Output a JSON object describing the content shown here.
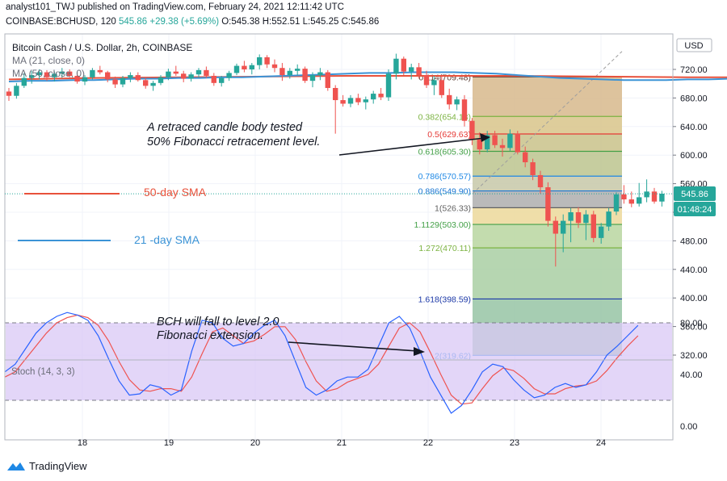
{
  "header": {
    "publisher": "analyst101_TWJ published on TradingView.com, February 24, 2021 12:11:42 UTC",
    "symbol_interval": "COINBASE:BCHUSD, 120",
    "last": "545.86",
    "change": "+29.38 (+5.69%)",
    "ohlc": "O:545.38 H:552.51 L:545.25 C:545.86"
  },
  "legend": {
    "title": "Bitcoin Cash / U.S. Dollar, 2h, COINBASE",
    "ma21": "MA (21, close, 0)",
    "ma50": "MA (50, close, 0)"
  },
  "stoch_label": "Stoch (14, 3, 3)",
  "footer": {
    "brand": "TradingView"
  },
  "price_axis": {
    "currency": "USD",
    "current_price": "545.86",
    "countdown": "01:48:24"
  },
  "annotations": {
    "retrace_1": "A retraced candle body tested",
    "retrace_2": "50% Fibonacci retracement level.",
    "fall_1": "BCH will fall to level 2.0",
    "fall_2": "Fibonacci extension.",
    "sma50": "50-day SMA",
    "sma21": "21 -day SMA"
  },
  "colors": {
    "up": "#26a69a",
    "down": "#ef5350",
    "ma21": "#3b93d6",
    "ma50": "#e8513b",
    "stoch_k": "#2962ff",
    "stoch_d": "#ef5350",
    "stoch_band": "#d9c8f5"
  },
  "chart_data": {
    "type": "candlestick",
    "price_ticks": [
      320,
      360,
      400,
      440,
      480,
      520,
      560,
      600,
      640,
      680,
      720
    ],
    "x_ticks": [
      "18",
      "19",
      "20",
      "21",
      "22",
      "23",
      "24"
    ],
    "fibonacci": [
      {
        "label": "0.114(709.48)",
        "value": 709.48,
        "color": "#5d4037"
      },
      {
        "label": "0.382(654.18)",
        "value": 654.18,
        "color": "#7cb342"
      },
      {
        "label": "0.5(629.63)",
        "value": 629.63,
        "color": "#e53935"
      },
      {
        "label": "0.618(605.30)",
        "value": 605.3,
        "color": "#43a047"
      },
      {
        "label": "0.786(570.57)",
        "value": 570.57,
        "color": "#1e88e5"
      },
      {
        "label": "0.886(549.90)",
        "value": 549.9,
        "color": "#1976d2"
      },
      {
        "label": "1(526.33)",
        "value": 526.33,
        "color": "#616161"
      },
      {
        "label": "1.1129(503.00)",
        "value": 503.0,
        "color": "#43a047"
      },
      {
        "label": "1.272(470.11)",
        "value": 470.11,
        "color": "#7cb342"
      },
      {
        "label": "1.618(398.59)",
        "value": 398.59,
        "color": "#1e3aa8"
      },
      {
        "label": "2(319.62)",
        "value": 319.62,
        "color": "#1e88e5"
      }
    ],
    "candles": [
      [
        689,
        694,
        676,
        683
      ],
      [
        683,
        701,
        679,
        697
      ],
      [
        697,
        715,
        694,
        708
      ],
      [
        708,
        718,
        700,
        712
      ],
      [
        712,
        720,
        706,
        716
      ],
      [
        716,
        719,
        704,
        709
      ],
      [
        709,
        717,
        703,
        714
      ],
      [
        714,
        722,
        708,
        717
      ],
      [
        717,
        720,
        709,
        711
      ],
      [
        711,
        716,
        700,
        703
      ],
      [
        703,
        712,
        698,
        709
      ],
      [
        709,
        722,
        706,
        719
      ],
      [
        719,
        725,
        713,
        716
      ],
      [
        716,
        718,
        702,
        706
      ],
      [
        706,
        710,
        694,
        699
      ],
      [
        699,
        711,
        695,
        708
      ],
      [
        708,
        716,
        702,
        712
      ],
      [
        712,
        716,
        703,
        705
      ],
      [
        705,
        709,
        693,
        697
      ],
      [
        697,
        704,
        690,
        701
      ],
      [
        701,
        712,
        698,
        709
      ],
      [
        709,
        721,
        705,
        717
      ],
      [
        717,
        725,
        711,
        714
      ],
      [
        714,
        718,
        702,
        707
      ],
      [
        707,
        716,
        703,
        713
      ],
      [
        713,
        722,
        708,
        719
      ],
      [
        719,
        724,
        708,
        711
      ],
      [
        711,
        715,
        697,
        701
      ],
      [
        701,
        711,
        696,
        708
      ],
      [
        708,
        718,
        704,
        715
      ],
      [
        715,
        728,
        712,
        725
      ],
      [
        725,
        732,
        716,
        720
      ],
      [
        720,
        729,
        713,
        726
      ],
      [
        726,
        741,
        720,
        737
      ],
      [
        737,
        740,
        722,
        727
      ],
      [
        727,
        734,
        716,
        722
      ],
      [
        722,
        729,
        704,
        712
      ],
      [
        712,
        722,
        707,
        718
      ],
      [
        718,
        727,
        712,
        721
      ],
      [
        721,
        724,
        701,
        704
      ],
      [
        704,
        716,
        695,
        712
      ],
      [
        712,
        722,
        705,
        716
      ],
      [
        716,
        719,
        690,
        694
      ],
      [
        694,
        698,
        630,
        677
      ],
      [
        677,
        684,
        668,
        672
      ],
      [
        672,
        684,
        667,
        680
      ],
      [
        680,
        686,
        670,
        674
      ],
      [
        674,
        682,
        664,
        678
      ],
      [
        678,
        690,
        672,
        686
      ],
      [
        686,
        694,
        677,
        681
      ],
      [
        681,
        720,
        676,
        714
      ],
      [
        714,
        742,
        706,
        735
      ],
      [
        735,
        738,
        712,
        717
      ],
      [
        717,
        728,
        706,
        723
      ],
      [
        723,
        729,
        707,
        712
      ],
      [
        712,
        718,
        694,
        698
      ],
      [
        698,
        711,
        684,
        705
      ],
      [
        705,
        712,
        680,
        684
      ],
      [
        684,
        693,
        664,
        671
      ],
      [
        671,
        682,
        663,
        678
      ],
      [
        678,
        684,
        640,
        648
      ],
      [
        648,
        652,
        614,
        622
      ],
      [
        622,
        632,
        601,
        608
      ],
      [
        608,
        634,
        604,
        628
      ],
      [
        628,
        634,
        610,
        614
      ],
      [
        614,
        623,
        598,
        610
      ],
      [
        610,
        636,
        606,
        630
      ],
      [
        630,
        634,
        601,
        604
      ],
      [
        604,
        612,
        583,
        590
      ],
      [
        590,
        595,
        565,
        572
      ],
      [
        572,
        578,
        546,
        555
      ],
      [
        555,
        562,
        500,
        508
      ],
      [
        508,
        514,
        444,
        490
      ],
      [
        490,
        517,
        464,
        508
      ],
      [
        508,
        526,
        478,
        520
      ],
      [
        520,
        527,
        498,
        505
      ],
      [
        505,
        523,
        481,
        517
      ],
      [
        517,
        522,
        478,
        484
      ],
      [
        484,
        505,
        476,
        500
      ],
      [
        500,
        526,
        494,
        521
      ],
      [
        521,
        548,
        516,
        545
      ],
      [
        545,
        558,
        532,
        538
      ],
      [
        538,
        549,
        527,
        532
      ],
      [
        532,
        561,
        528,
        541
      ],
      [
        541,
        566,
        534,
        549
      ],
      [
        549,
        554,
        532,
        535
      ],
      [
        535,
        550,
        528,
        546
      ]
    ],
    "ma21": [
      [
        706,
        703
      ],
      [
        711,
        704
      ],
      [
        716,
        704
      ],
      [
        721,
        705
      ],
      [
        726,
        705
      ],
      [
        731,
        706
      ],
      [
        736,
        707
      ],
      [
        741,
        707
      ],
      [
        746,
        708
      ],
      [
        751,
        708
      ],
      [
        756,
        709
      ],
      [
        761,
        709
      ],
      [
        766,
        710
      ],
      [
        771,
        711
      ],
      [
        776,
        712
      ],
      [
        781,
        713
      ],
      [
        786,
        714
      ],
      [
        791,
        715
      ],
      [
        796,
        715
      ],
      [
        801,
        716
      ],
      [
        806,
        716
      ],
      [
        811,
        716
      ],
      [
        816,
        715
      ],
      [
        821,
        714
      ],
      [
        826,
        712
      ],
      [
        831,
        710
      ],
      [
        836,
        708
      ],
      [
        841,
        707
      ],
      [
        846,
        706
      ],
      [
        851,
        705
      ],
      [
        856,
        705
      ],
      [
        861,
        705
      ],
      [
        866,
        706
      ],
      [
        871,
        706
      ],
      [
        876,
        707
      ],
      [
        881,
        708
      ],
      [
        886,
        708
      ],
      [
        891,
        708
      ],
      [
        896,
        708
      ],
      [
        901,
        707
      ],
      [
        906,
        705
      ],
      [
        911,
        704
      ],
      [
        916,
        702
      ],
      [
        921,
        700
      ],
      [
        926,
        699
      ],
      [
        931,
        698
      ],
      [
        936,
        697
      ],
      [
        941,
        696
      ],
      [
        946,
        696
      ],
      [
        951,
        696
      ],
      [
        956,
        697
      ],
      [
        961,
        698
      ],
      [
        966,
        699
      ],
      [
        971,
        700
      ],
      [
        976,
        702
      ],
      [
        981,
        703
      ],
      [
        986,
        704
      ],
      [
        991,
        705
      ],
      [
        996,
        703
      ],
      [
        1001,
        701
      ],
      [
        1006,
        696
      ],
      [
        1011,
        688
      ],
      [
        1016,
        680
      ],
      [
        1021,
        672
      ],
      [
        1026,
        665
      ],
      [
        1031,
        657
      ],
      [
        1036,
        650
      ],
      [
        1041,
        643
      ],
      [
        1046,
        634
      ],
      [
        1051,
        624
      ],
      [
        1056,
        612
      ],
      [
        1061,
        600
      ],
      [
        1066,
        590
      ],
      [
        1071,
        582
      ],
      [
        1076,
        575
      ],
      [
        1081,
        569
      ],
      [
        1086,
        564
      ],
      [
        1091,
        559
      ],
      [
        1096,
        555
      ],
      [
        1101,
        552
      ],
      [
        1106,
        550
      ],
      [
        1111,
        548
      ],
      [
        1116,
        547
      ],
      [
        1121,
        546
      ],
      [
        1126,
        546
      ],
      [
        1131,
        545
      ],
      [
        1136,
        545
      ]
    ],
    "ma50": [
      [
        706,
        706
      ],
      [
        726,
        708
      ],
      [
        746,
        709
      ],
      [
        766,
        710
      ],
      [
        786,
        711
      ],
      [
        806,
        711
      ],
      [
        826,
        711
      ],
      [
        846,
        710
      ],
      [
        866,
        709
      ],
      [
        886,
        709
      ],
      [
        906,
        708
      ],
      [
        926,
        707
      ],
      [
        946,
        706
      ],
      [
        966,
        705
      ],
      [
        986,
        704
      ],
      [
        1006,
        701
      ],
      [
        1026,
        694
      ],
      [
        1046,
        684
      ],
      [
        1066,
        672
      ],
      [
        1086,
        660
      ],
      [
        1106,
        649
      ],
      [
        1126,
        640
      ],
      [
        1136,
        633
      ]
    ],
    "stoch_k": [
      [
        706,
        42
      ],
      [
        716,
        48
      ],
      [
        726,
        60
      ],
      [
        736,
        72
      ],
      [
        746,
        80
      ],
      [
        756,
        85
      ],
      [
        766,
        88
      ],
      [
        776,
        86
      ],
      [
        786,
        82
      ],
      [
        796,
        70
      ],
      [
        806,
        52
      ],
      [
        816,
        35
      ],
      [
        826,
        24
      ],
      [
        836,
        25
      ],
      [
        846,
        32
      ],
      [
        856,
        30
      ],
      [
        866,
        24
      ],
      [
        876,
        28
      ],
      [
        886,
        58
      ],
      [
        896,
        82
      ],
      [
        906,
        80
      ],
      [
        916,
        68
      ],
      [
        926,
        62
      ],
      [
        936,
        64
      ],
      [
        946,
        72
      ],
      [
        956,
        78
      ],
      [
        966,
        82
      ],
      [
        976,
        70
      ],
      [
        986,
        50
      ],
      [
        996,
        30
      ],
      [
        1006,
        24
      ],
      [
        1016,
        28
      ],
      [
        1026,
        35
      ],
      [
        1036,
        38
      ],
      [
        1046,
        38
      ],
      [
        1056,
        44
      ],
      [
        1066,
        62
      ],
      [
        1076,
        80
      ],
      [
        1086,
        85
      ],
      [
        1096,
        76
      ],
      [
        1106,
        58
      ],
      [
        1116,
        38
      ],
      [
        1126,
        24
      ],
      [
        1136,
        10
      ],
      [
        1146,
        16
      ],
      [
        1156,
        28
      ],
      [
        1166,
        42
      ],
      [
        1176,
        48
      ],
      [
        1186,
        46
      ],
      [
        1196,
        36
      ],
      [
        1206,
        28
      ],
      [
        1216,
        22
      ],
      [
        1226,
        24
      ],
      [
        1236,
        30
      ],
      [
        1246,
        33
      ],
      [
        1256,
        30
      ],
      [
        1266,
        32
      ],
      [
        1276,
        42
      ],
      [
        1286,
        55
      ],
      [
        1296,
        62
      ],
      [
        1306,
        70
      ],
      [
        1316,
        78
      ]
    ],
    "stoch_d": [
      [
        706,
        38
      ],
      [
        716,
        42
      ],
      [
        726,
        52
      ],
      [
        736,
        62
      ],
      [
        746,
        72
      ],
      [
        756,
        80
      ],
      [
        766,
        84
      ],
      [
        776,
        86
      ],
      [
        786,
        84
      ],
      [
        796,
        78
      ],
      [
        806,
        66
      ],
      [
        816,
        50
      ],
      [
        826,
        36
      ],
      [
        836,
        28
      ],
      [
        846,
        27
      ],
      [
        856,
        29
      ],
      [
        866,
        29
      ],
      [
        876,
        27
      ],
      [
        886,
        38
      ],
      [
        896,
        56
      ],
      [
        906,
        73
      ],
      [
        916,
        76
      ],
      [
        926,
        70
      ],
      [
        936,
        64
      ],
      [
        946,
        66
      ],
      [
        956,
        71
      ],
      [
        966,
        77
      ],
      [
        976,
        77
      ],
      [
        986,
        67
      ],
      [
        996,
        50
      ],
      [
        1006,
        35
      ],
      [
        1016,
        27
      ],
      [
        1026,
        29
      ],
      [
        1036,
        34
      ],
      [
        1046,
        37
      ],
      [
        1056,
        40
      ],
      [
        1066,
        48
      ],
      [
        1076,
        62
      ],
      [
        1086,
        76
      ],
      [
        1096,
        80
      ],
      [
        1106,
        73
      ],
      [
        1116,
        57
      ],
      [
        1126,
        40
      ],
      [
        1136,
        24
      ],
      [
        1146,
        17
      ],
      [
        1156,
        18
      ],
      [
        1166,
        29
      ],
      [
        1176,
        39
      ],
      [
        1186,
        45
      ],
      [
        1196,
        43
      ],
      [
        1206,
        37
      ],
      [
        1216,
        29
      ],
      [
        1226,
        25
      ],
      [
        1236,
        25
      ],
      [
        1246,
        29
      ],
      [
        1256,
        31
      ],
      [
        1266,
        32
      ],
      [
        1276,
        35
      ],
      [
        1286,
        43
      ],
      [
        1296,
        53
      ],
      [
        1306,
        62
      ],
      [
        1316,
        70
      ]
    ],
    "stoch_ticks": [
      0,
      40,
      80
    ],
    "stoch_band": [
      20,
      80
    ]
  }
}
